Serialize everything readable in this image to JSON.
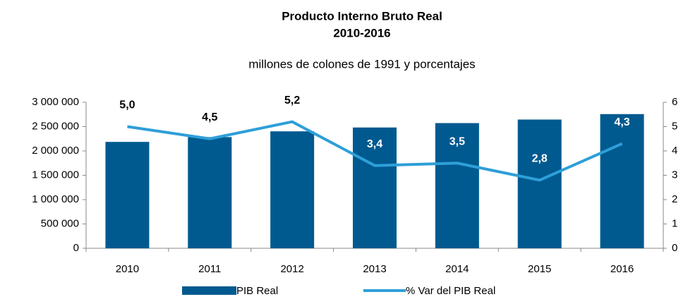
{
  "chart_data": {
    "type": "bar",
    "title": "Producto Interno Bruto Real",
    "subtitle": "2010-2016",
    "subtitle2": "millones de colones de 1991 y porcentajes",
    "categories": [
      "2010",
      "2011",
      "2012",
      "2013",
      "2014",
      "2015",
      "2016"
    ],
    "series": [
      {
        "name": "PIB Real",
        "type": "bar",
        "color": "#005a8f",
        "values": [
          2186000,
          2285000,
          2403000,
          2482000,
          2572000,
          2645000,
          2757000
        ]
      },
      {
        "name": "% Var del PIB Real",
        "type": "line",
        "axis": "y2",
        "color": "#2e9fd8",
        "values": [
          5.0,
          4.5,
          5.2,
          3.4,
          3.5,
          2.8,
          4.3
        ],
        "value_labels": [
          "5,0",
          "4,5",
          "5,2",
          "3,4",
          "3,5",
          "2,8",
          "4,3"
        ]
      }
    ],
    "ylim": [
      0,
      3000000
    ],
    "yticks": [
      0,
      {
        "value": 500000,
        "label": "500 000"
      },
      {
        "value": 1000000,
        "label": "1 000 000"
      },
      {
        "value": 1500000,
        "label": "1 500 000"
      },
      {
        "value": 2000000,
        "label": "2 000 000"
      },
      {
        "value": 2500000,
        "label": "2 500 000"
      },
      {
        "value": 3000000,
        "label": "3 000 000"
      }
    ],
    "y2lim": [
      0,
      6
    ],
    "y2ticks": [
      0,
      1,
      2,
      3,
      4,
      5,
      6
    ],
    "grid": false,
    "legend": "bottom"
  }
}
